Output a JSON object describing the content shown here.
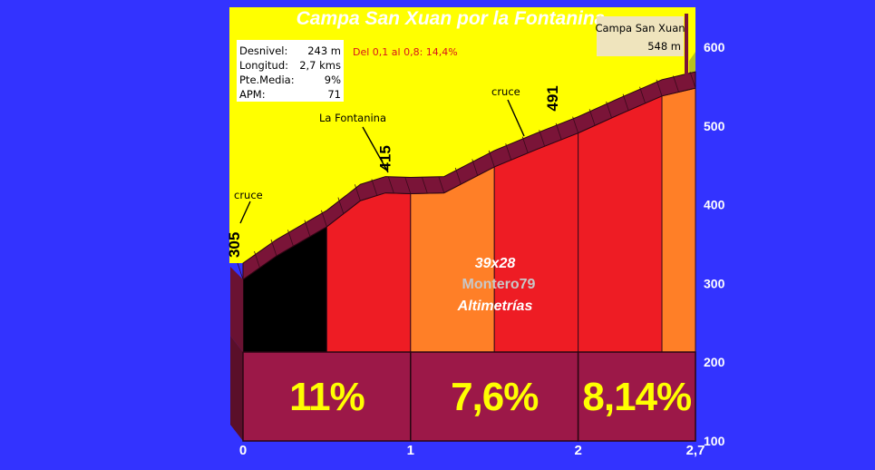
{
  "chart_data": {
    "type": "area",
    "title": "Campa San Xuan por la Fontanina",
    "x_ticks": [
      "0",
      "1",
      "2",
      "2,7"
    ],
    "y_ticks": [
      "100",
      "200",
      "300",
      "400",
      "500",
      "600"
    ],
    "xlim": [
      0,
      2.7
    ],
    "ylim": [
      100,
      600
    ],
    "profile": [
      {
        "x": 0.0,
        "y": 305
      },
      {
        "x": 0.2,
        "y": 335
      },
      {
        "x": 0.5,
        "y": 372
      },
      {
        "x": 0.7,
        "y": 405
      },
      {
        "x": 0.85,
        "y": 415
      },
      {
        "x": 1.0,
        "y": 414
      },
      {
        "x": 1.2,
        "y": 415
      },
      {
        "x": 1.5,
        "y": 448
      },
      {
        "x": 1.75,
        "y": 470
      },
      {
        "x": 2.0,
        "y": 491
      },
      {
        "x": 2.25,
        "y": 515
      },
      {
        "x": 2.5,
        "y": 538
      },
      {
        "x": 2.7,
        "y": 548
      }
    ],
    "km_segments": [
      {
        "from": 0,
        "to": 1,
        "label": "11%"
      },
      {
        "from": 1,
        "to": 2,
        "label": "7,6%"
      },
      {
        "from": 2,
        "to": 2.7,
        "label": "8,14%"
      }
    ],
    "sub_segments": [
      {
        "from": 0.0,
        "to": 0.5,
        "color": "#000000"
      },
      {
        "from": 0.5,
        "to": 1.0,
        "color": "#ee1c24"
      },
      {
        "from": 1.0,
        "to": 1.5,
        "color": "#ff7f27"
      },
      {
        "from": 1.5,
        "to": 2.0,
        "color": "#ee1c24"
      },
      {
        "from": 2.0,
        "to": 2.5,
        "color": "#ee1c24"
      },
      {
        "from": 2.5,
        "to": 2.7,
        "color": "#ff7f27"
      }
    ],
    "altitude_labels": [
      {
        "x": 0.0,
        "y": 305,
        "text": "305"
      },
      {
        "x": 0.9,
        "y": 415,
        "text": "415"
      },
      {
        "x": 1.9,
        "y": 491,
        "text": "491"
      }
    ],
    "annotations": [
      {
        "x": 0.0,
        "y": 305,
        "text": "cruce"
      },
      {
        "x": 0.88,
        "y": 415,
        "text": "La Fontanina"
      },
      {
        "x": 1.7,
        "y": 470,
        "text": "cruce"
      }
    ],
    "stats": [
      {
        "label": "Desnivel:",
        "value": "243 m"
      },
      {
        "label": "Longitud:",
        "value": "2,7 kms"
      },
      {
        "label": "Pte.Media:",
        "value": "9%"
      },
      {
        "label": "APM:",
        "value": "71"
      }
    ],
    "note": "Del 0,1 al 0,8: 14,4%",
    "summit": {
      "name": "Campa San Xuan",
      "altitude": "548 m"
    },
    "watermark": [
      "39x28",
      "Montero79",
      "Altimetrías"
    ],
    "colors": {
      "background": "#3333ff",
      "sky": "#ffff00",
      "road": "#7a1438",
      "base": "#9c1848",
      "black": "#000000",
      "red": "#ee1c24",
      "orange": "#ff7f27",
      "percent_text": "#ffff00"
    }
  }
}
